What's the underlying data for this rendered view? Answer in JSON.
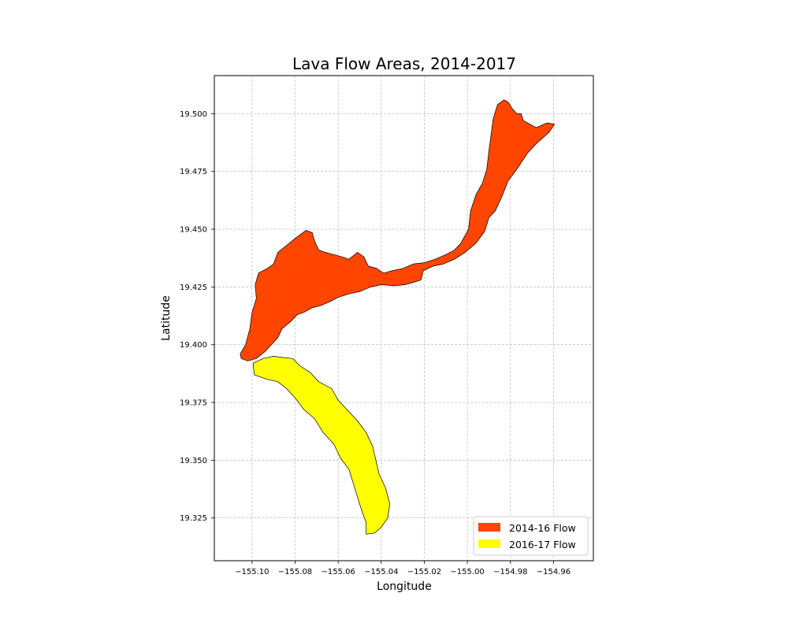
{
  "chart_data": {
    "type": "map",
    "title": "Lava Flow Areas, 2014-2017",
    "xlabel": "Longitude",
    "ylabel": "Latitude",
    "xlim": [
      -155.1175,
      -154.9415
    ],
    "ylim": [
      19.3065,
      19.5165
    ],
    "xticks": [
      -155.1,
      -155.08,
      -155.06,
      -155.04,
      -155.02,
      -155.0,
      -154.98,
      -154.96
    ],
    "xtick_labels": [
      "−155.10",
      "−155.08",
      "−155.06",
      "−155.04",
      "−155.02",
      "−155.00",
      "−154.98",
      "−154.96"
    ],
    "yticks": [
      19.325,
      19.35,
      19.375,
      19.4,
      19.425,
      19.45,
      19.475,
      19.5
    ],
    "ytick_labels": [
      "19.325",
      "19.350",
      "19.375",
      "19.400",
      "19.425",
      "19.450",
      "19.475",
      "19.500"
    ],
    "grid": true,
    "legend_position": "bottom-right",
    "series": [
      {
        "name": "2014-16 Flow",
        "color": "#ff4500",
        "polygon": [
          [
            -155.1055,
            19.396
          ],
          [
            -155.103,
            19.4
          ],
          [
            -155.101,
            19.407
          ],
          [
            -155.1,
            19.414
          ],
          [
            -155.098,
            19.42
          ],
          [
            -155.0985,
            19.426
          ],
          [
            -155.097,
            19.431
          ],
          [
            -155.093,
            19.433
          ],
          [
            -155.09,
            19.435
          ],
          [
            -155.088,
            19.44
          ],
          [
            -155.084,
            19.443
          ],
          [
            -155.08,
            19.446
          ],
          [
            -155.075,
            19.4495
          ],
          [
            -155.072,
            19.4485
          ],
          [
            -155.071,
            19.445
          ],
          [
            -155.069,
            19.441
          ],
          [
            -155.066,
            19.44
          ],
          [
            -155.062,
            19.439
          ],
          [
            -155.058,
            19.438
          ],
          [
            -155.055,
            19.437
          ],
          [
            -155.051,
            19.44
          ],
          [
            -155.048,
            19.438
          ],
          [
            -155.046,
            19.434
          ],
          [
            -155.042,
            19.433
          ],
          [
            -155.039,
            19.431
          ],
          [
            -155.035,
            19.432
          ],
          [
            -155.03,
            19.433
          ],
          [
            -155.025,
            19.435
          ],
          [
            -155.02,
            19.4355
          ],
          [
            -155.015,
            19.437
          ],
          [
            -155.01,
            19.439
          ],
          [
            -155.006,
            19.441
          ],
          [
            -155.003,
            19.444
          ],
          [
            -154.9995,
            19.45
          ],
          [
            -154.9985,
            19.458
          ],
          [
            -154.996,
            19.465
          ],
          [
            -154.993,
            19.47
          ],
          [
            -154.991,
            19.476
          ],
          [
            -154.99,
            19.484
          ],
          [
            -154.989,
            19.491
          ],
          [
            -154.988,
            19.498
          ],
          [
            -154.986,
            19.504
          ],
          [
            -154.983,
            19.506
          ],
          [
            -154.981,
            19.505
          ],
          [
            -154.979,
            19.502
          ],
          [
            -154.977,
            19.5
          ],
          [
            -154.975,
            19.5
          ],
          [
            -154.974,
            19.497
          ],
          [
            -154.972,
            19.496
          ],
          [
            -154.968,
            19.494
          ],
          [
            -154.963,
            19.496
          ],
          [
            -154.9595,
            19.4955
          ],
          [
            -154.962,
            19.492
          ],
          [
            -154.968,
            19.487
          ],
          [
            -154.972,
            19.483
          ],
          [
            -154.977,
            19.476
          ],
          [
            -154.981,
            19.471
          ],
          [
            -154.984,
            19.464
          ],
          [
            -154.987,
            19.458
          ],
          [
            -154.99,
            19.455
          ],
          [
            -154.992,
            19.449
          ],
          [
            -154.996,
            19.444
          ],
          [
            -155.001,
            19.44
          ],
          [
            -155.006,
            19.437
          ],
          [
            -155.011,
            19.435
          ],
          [
            -155.016,
            19.434
          ],
          [
            -155.0205,
            19.432
          ],
          [
            -155.0215,
            19.428
          ],
          [
            -155.025,
            19.427
          ],
          [
            -155.029,
            19.426
          ],
          [
            -155.034,
            19.4255
          ],
          [
            -155.04,
            19.426
          ],
          [
            -155.045,
            19.425
          ],
          [
            -155.05,
            19.423
          ],
          [
            -155.055,
            19.422
          ],
          [
            -155.06,
            19.4205
          ],
          [
            -155.063,
            19.419
          ],
          [
            -155.068,
            19.417
          ],
          [
            -155.072,
            19.416
          ],
          [
            -155.076,
            19.414
          ],
          [
            -155.079,
            19.413
          ],
          [
            -155.082,
            19.41
          ],
          [
            -155.086,
            19.407
          ],
          [
            -155.088,
            19.403
          ],
          [
            -155.091,
            19.4
          ],
          [
            -155.094,
            19.397
          ],
          [
            -155.098,
            19.394
          ],
          [
            -155.102,
            19.393
          ],
          [
            -155.105,
            19.394
          ]
        ]
      },
      {
        "name": "2016-17 Flow",
        "color": "#ffff00",
        "polygon": [
          [
            -155.0995,
            19.392
          ],
          [
            -155.099,
            19.387
          ],
          [
            -155.093,
            19.385
          ],
          [
            -155.088,
            19.384
          ],
          [
            -155.084,
            19.381
          ],
          [
            -155.08,
            19.377
          ],
          [
            -155.076,
            19.372
          ],
          [
            -155.071,
            19.368
          ],
          [
            -155.067,
            19.362
          ],
          [
            -155.062,
            19.357
          ],
          [
            -155.059,
            19.351
          ],
          [
            -155.055,
            19.346
          ],
          [
            -155.053,
            19.34
          ],
          [
            -155.051,
            19.334
          ],
          [
            -155.049,
            19.328
          ],
          [
            -155.047,
            19.323
          ],
          [
            -155.047,
            19.318
          ],
          [
            -155.043,
            19.3185
          ],
          [
            -155.04,
            19.321
          ],
          [
            -155.037,
            19.325
          ],
          [
            -155.036,
            19.331
          ],
          [
            -155.038,
            19.338
          ],
          [
            -155.041,
            19.344
          ],
          [
            -155.0425,
            19.35
          ],
          [
            -155.044,
            19.356
          ],
          [
            -155.047,
            19.362
          ],
          [
            -155.051,
            19.367
          ],
          [
            -155.055,
            19.371
          ],
          [
            -155.06,
            19.376
          ],
          [
            -155.063,
            19.381
          ],
          [
            -155.069,
            19.384
          ],
          [
            -155.073,
            19.388
          ],
          [
            -155.078,
            19.391
          ],
          [
            -155.081,
            19.394
          ],
          [
            -155.086,
            19.3945
          ],
          [
            -155.09,
            19.395
          ],
          [
            -155.095,
            19.394
          ]
        ]
      }
    ]
  }
}
